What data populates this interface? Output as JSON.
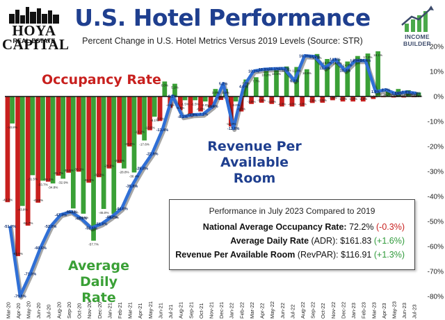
{
  "header": {
    "title": "U.S. Hotel Performance",
    "subtitle": "Percent Change in U.S. Hotel Metrics Versus 2019 Levels (Source: STR)"
  },
  "logos": {
    "left_line1": "HOYA CAPITAL",
    "left_line2": "REAL ESTATE",
    "right": "INCOME BUILDER"
  },
  "callouts": {
    "occupancy": "Occupancy Rate",
    "revpar_line1": "Revenue Per",
    "revpar_line2": "Available Room",
    "adr_line1": "Average",
    "adr_line2": "Daily Rate"
  },
  "infobox": {
    "title": "Performance in July 2023 Compared to 2019",
    "occ_label": "National Average Occupancy Rate",
    "occ_value": "72.2%",
    "occ_change": "(-0.3%)",
    "adr_label": "Average Daily Rate",
    "adr_abbr": "(ADR):",
    "adr_value": "$161.83",
    "adr_change": "(+1.6%)",
    "rev_label": "Revenue Per Available Room",
    "rev_abbr": "(RevPAR):",
    "rev_value": "$116.91",
    "rev_change": "(+1.3%)"
  },
  "colors": {
    "occupancy": "#c8201e",
    "adr": "#3aa036",
    "revpar": "#2f6fd6",
    "title": "#1f3f8f"
  },
  "chart_data": {
    "type": "bar",
    "title": "U.S. Hotel Performance",
    "ylim": [
      -80,
      20
    ],
    "yticks": [
      "20%",
      "10%",
      "0%",
      "-10%",
      "-20%",
      "-30%",
      "-40%",
      "-50%",
      "-60%",
      "-70%",
      "-80%"
    ],
    "xtick_labels": [
      "Mar-20",
      "Apr-20",
      "May-20",
      "Jun-20",
      "Jul-20",
      "Aug-20",
      "Sep-20",
      "Oct-20",
      "Nov-20",
      "Dec-20",
      "Jan-21",
      "Feb-21",
      "Mar-21",
      "Apr-21",
      "May-21",
      "Jun-21",
      "Jul-21",
      "Aug-21",
      "Sep-21",
      "Oct-21",
      "Nov-21",
      "Dec-21",
      "Jan-22",
      "Feb-22",
      "Mar-22",
      "Apr-22",
      "May-22",
      "Jun-22",
      "Jul-22",
      "Aug-22",
      "Sep-22",
      "Oct-22",
      "Nov-22",
      "Dec-22",
      "Jan-23",
      "Feb-23",
      "Mar-23",
      "Apr-23",
      "May-23",
      "Jun-23",
      "Jul-23"
    ],
    "categories": [
      "Mar-20",
      "Apr-20",
      "May-20",
      "Jun-20",
      "Jul-20",
      "Aug-20",
      "Sep-20",
      "Oct-20",
      "Nov-20",
      "Dec-20",
      "Jan-21",
      "Feb-21",
      "Mar-21",
      "Apr-21",
      "May-21",
      "Jun-21",
      "Jul-21",
      "Aug-21",
      "Sep-21",
      "Oct-21",
      "Nov-21",
      "Dec-21",
      "Jan-22",
      "Feb-22",
      "Mar-22",
      "Apr-22",
      "May-22",
      "Jun-22",
      "Jul-22",
      "Aug-22",
      "Sep-22",
      "Oct-22",
      "Nov-22",
      "Dec-22",
      "Jan-23",
      "Feb-23",
      "Mar-23",
      "Apr-23",
      "May-23",
      "Jun-23",
      "Jul-23"
    ],
    "series": [
      {
        "name": "Occupancy Rate",
        "values": [
          -42.3,
          -63.9,
          -51.7,
          -42.5,
          -34.1,
          -31.7,
          -30.5,
          -30.1,
          -34.5,
          -32.3,
          -28.8,
          -26.6,
          -20.0,
          -15.2,
          -13.5,
          -9.8,
          -4.5,
          -5.5,
          -8.2,
          -6.0,
          -5.0,
          -1.4,
          -12.0,
          -6.0,
          -3.0,
          -2.5,
          -3.0,
          -4.0,
          -4.0,
          -4.0,
          -2.6,
          -2.5,
          -1.5,
          -2.0,
          -2.0,
          -2.0,
          -1.0,
          -0.3,
          -0.4,
          -0.4,
          -0.3
        ]
      },
      {
        "name": "Average Daily Rate",
        "values": [
          -10.8,
          -43.8,
          -31.5,
          -33.7,
          -34.8,
          -32.9,
          -44.8,
          -46.9,
          -57.7,
          -45.0,
          -47.0,
          -28.8,
          -30.4,
          -17.6,
          -8.1,
          6.0,
          5.1,
          -1.5,
          -1.5,
          -2.0,
          3.0,
          3.0,
          -2.0,
          6.8,
          7.7,
          10.2,
          10.5,
          12.0,
          11.8,
          10.9,
          17.0,
          15.0,
          14.8,
          14.0,
          16.2,
          17.2,
          18.1,
          2.2,
          3.0,
          2.5,
          1.6
        ]
      },
      {
        "name": "Revenue Per Available Room",
        "values": [
          -51.9,
          -79.9,
          -71.0,
          -60.6,
          -52.0,
          -47.3,
          -46.1,
          -48.8,
          -52.6,
          -51.0,
          -48.2,
          -44.8,
          -35.8,
          -28.8,
          -22.9,
          -13.4,
          0.2,
          -8.1,
          -7.3,
          -7.1,
          -3.9,
          5.2,
          -12.8,
          4.0,
          10.2,
          10.9,
          11.1,
          11.2,
          6.3,
          16.3,
          16.0,
          11.4,
          14.8,
          10.4,
          14.3,
          14.4,
          1.9,
          2.7,
          1.1,
          1.8,
          1.3
        ]
      }
    ],
    "bar_labels_occ": [
      "-42.3%",
      "-63.9%",
      "-51.7%",
      "-42.5%",
      "-34.1%",
      "-31.7%",
      "-30.5%",
      "-30.1%",
      "-34.5%",
      "-32.3%",
      "-28.8%",
      "-26.6%",
      "-20.0%",
      "-15.2%",
      "-13.5%",
      "-9.8%",
      "-4.5%",
      "-5.5%",
      "-8.2%",
      "-6.0%",
      "-5.0%",
      "-1.4%",
      "-12.0%",
      "-6.0%",
      "-3.0%",
      "-2.5%",
      "-3.0%",
      "-4.0%",
      "-4.0%",
      "-4.0%",
      "-2.6%",
      "-2.5%",
      "-1.5%",
      "-2.0%",
      "-2.0%",
      "-2.0%",
      "-1.0%",
      "-0.3%",
      "-0.4%",
      "-0.4%",
      "-0.3%"
    ],
    "bar_labels_adr": [
      "-10.8%",
      "-43.8%",
      "-31.5%",
      "-33.7%",
      "-34.8%",
      "-32.9%",
      "-44.8%",
      "-46.9%",
      "-57.7%",
      "-45.0%",
      "-47.0%",
      "-28.8%",
      "-30.4%",
      "-17.6%",
      "-8.1%",
      "6.0%",
      "5.1%",
      "-1.5%",
      "-1.5%",
      "-2.0%",
      "3.0%",
      "3.0%",
      "-2.0%",
      "6.8%",
      "7.7%",
      "10.2%",
      "10.5%",
      "12.0%",
      "11.8%",
      "10.9%",
      "17.0%",
      "15.0%",
      "14.8%",
      "14.0%",
      "16.2%",
      "17.2%",
      "18.1%",
      "2.2%",
      "3.0%",
      "2.5%",
      "1.6%"
    ],
    "line_labels": [
      "-51.9%",
      "-79.9%",
      "-71.0%",
      "-60.6%",
      "-52.0%",
      "-47.3%",
      "-46.1%",
      "-48.8%",
      "-52.6%",
      "-51.0%",
      "-48.2%",
      "-44.8%",
      "-35.8%",
      "-28.8%",
      "-22.9%",
      "-13.4%",
      "0.2%",
      "-8.1%",
      "-7.3%",
      "-7.1%",
      "-3.9%",
      "5.2%",
      "-12.8%",
      "4.0%",
      "10.2%",
      "10.9%",
      "11.1%",
      "11.2%",
      "6.3%",
      "16.3%",
      "16.0%",
      "11.4%",
      "14.8%",
      "10.4%",
      "14.3%",
      "14.4%",
      "1.9%",
      "2.7%",
      "1.1%",
      "1.8%",
      "1.3%"
    ]
  }
}
